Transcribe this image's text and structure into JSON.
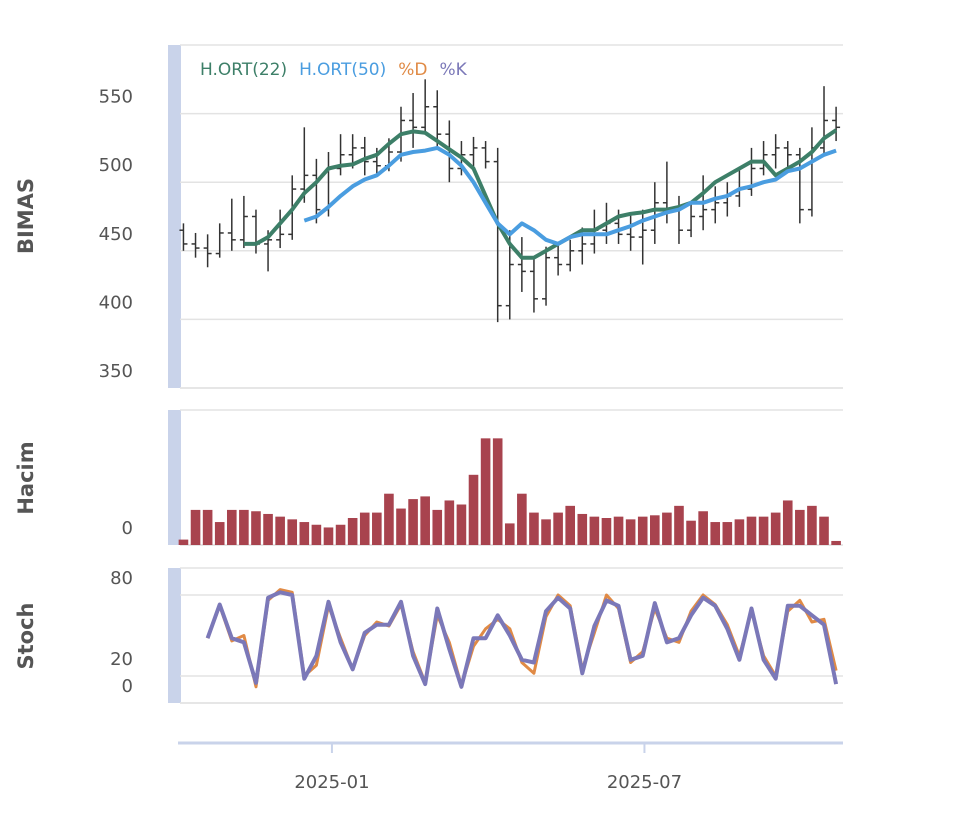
{
  "chart_data": [
    {
      "type": "ohlc",
      "y_label": "BIMAS",
      "x": [
        "2024-10-07",
        "2024-10-14",
        "2024-10-21",
        "2024-10-28",
        "2024-11-04",
        "2024-11-11",
        "2024-11-18",
        "2024-11-25",
        "2024-12-02",
        "2024-12-09",
        "2024-12-16",
        "2024-12-23",
        "2024-12-30",
        "2025-01-06",
        "2025-01-13",
        "2025-01-20",
        "2025-01-27",
        "2025-02-03",
        "2025-02-10",
        "2025-02-17",
        "2025-02-24",
        "2025-03-03",
        "2025-03-10",
        "2025-03-17",
        "2025-03-24",
        "2025-03-31",
        "2025-04-07",
        "2025-04-14",
        "2025-04-21",
        "2025-04-28",
        "2025-05-05",
        "2025-05-12",
        "2025-05-19",
        "2025-05-26",
        "2025-06-02",
        "2025-06-09",
        "2025-06-16",
        "2025-06-23",
        "2025-06-30",
        "2025-07-07",
        "2025-07-14",
        "2025-07-21",
        "2025-07-28",
        "2025-08-04",
        "2025-08-11",
        "2025-08-18",
        "2025-08-25",
        "2025-09-01",
        "2025-09-08",
        "2025-09-15",
        "2025-09-22",
        "2025-09-29",
        "2025-10-06",
        "2025-10-13",
        "2025-10-20"
      ],
      "xlim": [
        "2024-10-05",
        "2025-10-24"
      ],
      "xticks": [
        "2025-01",
        "2025-07"
      ],
      "ylim": [
        350,
        600
      ],
      "yticks": [
        350,
        400,
        450,
        500,
        550
      ],
      "grid": true,
      "legend": "top-left",
      "ohlc": {
        "color": "#333333",
        "open": [
          465,
          455,
          452,
          448,
          463,
          458,
          475,
          455,
          458,
          462,
          495,
          505,
          480,
          510,
          520,
          525,
          515,
          512,
          522,
          545,
          540,
          555,
          535,
          510,
          520,
          525,
          515,
          410,
          440,
          435,
          415,
          445,
          440,
          450,
          455,
          465,
          470,
          462,
          460,
          465,
          485,
          480,
          465,
          475,
          480,
          485,
          490,
          495,
          510,
          520,
          525,
          520,
          480,
          525,
          545
        ],
        "high": [
          470,
          463,
          462,
          470,
          488,
          490,
          480,
          465,
          480,
          505,
          540,
          517,
          522,
          535,
          535,
          533,
          525,
          532,
          555,
          565,
          575,
          567,
          545,
          530,
          533,
          530,
          525,
          465,
          460,
          445,
          453,
          455,
          458,
          467,
          480,
          485,
          480,
          477,
          480,
          500,
          515,
          490,
          485,
          505,
          497,
          500,
          510,
          525,
          530,
          535,
          530,
          525,
          540,
          570,
          555
        ],
        "low": [
          450,
          445,
          438,
          445,
          450,
          452,
          448,
          435,
          452,
          458,
          485,
          470,
          475,
          505,
          510,
          505,
          505,
          508,
          515,
          525,
          535,
          525,
          500,
          505,
          510,
          510,
          398,
          400,
          420,
          405,
          410,
          432,
          435,
          440,
          448,
          455,
          455,
          450,
          440,
          455,
          470,
          455,
          460,
          465,
          470,
          475,
          482,
          490,
          505,
          510,
          510,
          470,
          475,
          520,
          530
        ],
        "close": [
          455,
          452,
          448,
          463,
          458,
          475,
          455,
          458,
          462,
          495,
          505,
          480,
          510,
          520,
          525,
          515,
          512,
          522,
          545,
          540,
          555,
          535,
          510,
          520,
          525,
          515,
          410,
          440,
          435,
          415,
          445,
          440,
          450,
          455,
          465,
          470,
          462,
          460,
          465,
          485,
          480,
          465,
          475,
          480,
          485,
          490,
          495,
          510,
          520,
          525,
          520,
          480,
          525,
          545,
          540
        ]
      },
      "series": [
        {
          "name": "H.ORT(22)",
          "color": "#3d7f68",
          "values": [
            null,
            null,
            null,
            null,
            null,
            455,
            455,
            460,
            470,
            480,
            492,
            500,
            510,
            512,
            513,
            517,
            520,
            528,
            535,
            537,
            536,
            530,
            524,
            518,
            510,
            490,
            470,
            455,
            445,
            445,
            450,
            455,
            460,
            465,
            465,
            470,
            475,
            477,
            478,
            480,
            480,
            482,
            485,
            492,
            500,
            505,
            510,
            515,
            515,
            505,
            510,
            515,
            522,
            532,
            538
          ]
        },
        {
          "name": "H.ORT(50)",
          "color": "#4a9de0",
          "values": [
            null,
            null,
            null,
            null,
            null,
            null,
            null,
            null,
            null,
            null,
            472,
            475,
            482,
            490,
            497,
            502,
            505,
            512,
            520,
            522,
            523,
            525,
            520,
            512,
            500,
            485,
            470,
            462,
            470,
            465,
            458,
            455,
            460,
            462,
            462,
            462,
            465,
            468,
            472,
            475,
            478,
            480,
            485,
            485,
            488,
            490,
            495,
            497,
            500,
            502,
            508,
            510,
            515,
            520,
            523
          ]
        }
      ]
    },
    {
      "type": "bar",
      "y_label": "Hacim",
      "color": "#a8434e",
      "ylim": [
        0,
        100
      ],
      "yticks": [
        0
      ],
      "grid": true,
      "values": [
        4,
        26,
        26,
        17,
        26,
        26,
        25,
        23,
        21,
        19,
        17,
        15,
        13,
        15,
        20,
        24,
        24,
        38,
        27,
        34,
        36,
        26,
        33,
        30,
        52,
        79,
        79,
        16,
        38,
        24,
        19,
        24,
        29,
        23,
        21,
        20,
        21,
        19,
        21,
        22,
        24,
        29,
        18,
        25,
        17,
        17,
        19,
        21,
        21,
        24,
        33,
        26,
        29,
        21,
        3
      ]
    },
    {
      "type": "line",
      "y_label": "Stoch",
      "ylim": [
        0,
        100
      ],
      "yticks": [
        0,
        20,
        80
      ],
      "grid": true,
      "series": [
        {
          "name": "%D",
          "color": "#e08a45",
          "values": [
            null,
            null,
            48,
            72,
            46,
            50,
            12,
            76,
            84,
            82,
            20,
            28,
            72,
            48,
            25,
            50,
            60,
            57,
            73,
            38,
            15,
            65,
            45,
            13,
            42,
            55,
            62,
            55,
            30,
            22,
            64,
            80,
            72,
            25,
            52,
            80,
            70,
            30,
            38,
            70,
            48,
            45,
            68,
            80,
            73,
            58,
            35,
            68,
            35,
            20,
            68,
            76,
            60,
            62,
            24
          ]
        },
        {
          "name": "%K",
          "color": "#7b78b8",
          "values": [
            null,
            null,
            48,
            73,
            48,
            45,
            15,
            78,
            82,
            80,
            18,
            35,
            75,
            45,
            25,
            52,
            58,
            58,
            75,
            35,
            14,
            70,
            40,
            12,
            48,
            48,
            65,
            50,
            32,
            30,
            68,
            78,
            70,
            22,
            57,
            76,
            72,
            32,
            35,
            74,
            45,
            48,
            65,
            78,
            72,
            55,
            32,
            70,
            32,
            18,
            72,
            72,
            65,
            58,
            14
          ]
        }
      ]
    }
  ]
}
